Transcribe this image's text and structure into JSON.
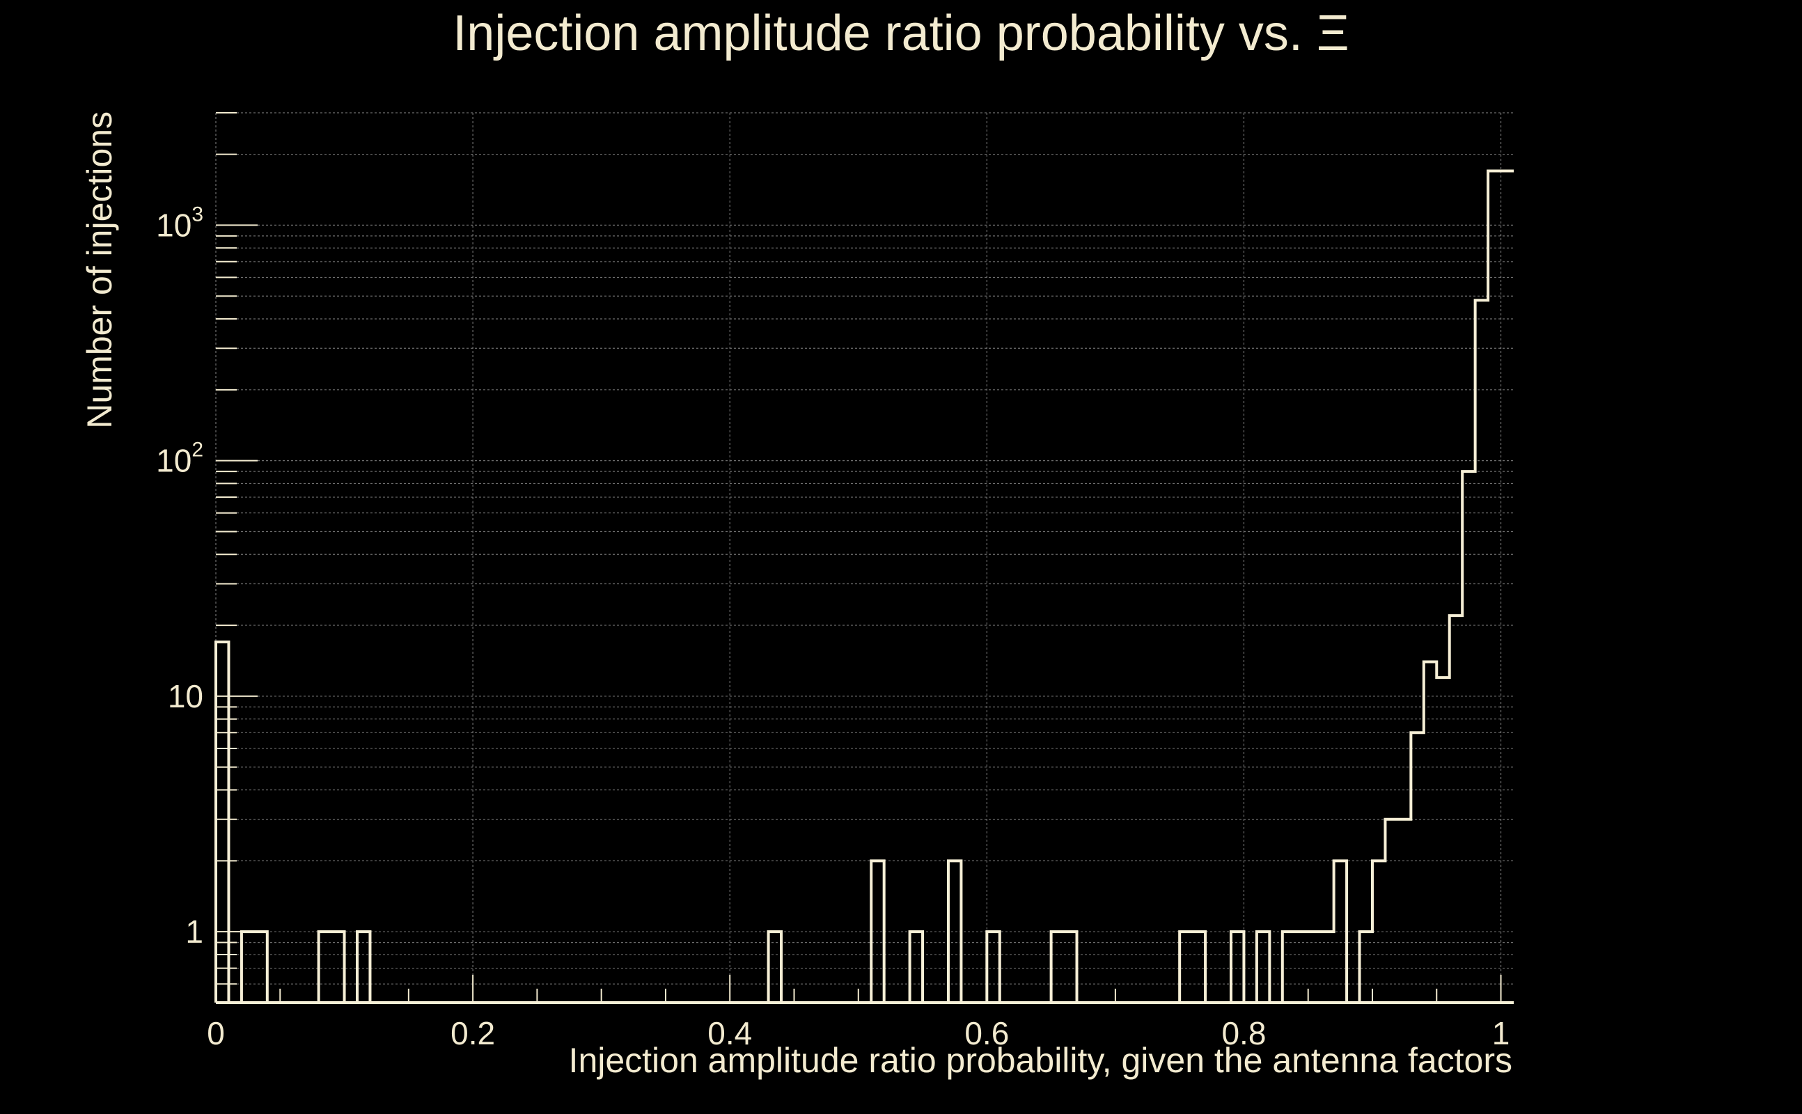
{
  "chart_data": {
    "type": "bar",
    "title": "Injection amplitude ratio probability vs.  Ξ",
    "xlabel": "Injection amplitude ratio probability, given the antenna factors",
    "ylabel": "Number of injections",
    "xlim": [
      0,
      1.01
    ],
    "ylim": [
      0.5,
      3000
    ],
    "yscale": "log",
    "grid": true,
    "x_ticks": [
      0,
      0.2,
      0.4,
      0.6,
      0.8,
      1
    ],
    "x_tick_labels": [
      "0",
      "0.2",
      "0.4",
      "0.6",
      "0.8",
      "1"
    ],
    "y_ticks": [
      1,
      10,
      100,
      1000
    ],
    "y_tick_labels": [
      {
        "base": "1",
        "exp": ""
      },
      {
        "base": "10",
        "exp": ""
      },
      {
        "base": "10",
        "exp": "2"
      },
      {
        "base": "10",
        "exp": "3"
      }
    ],
    "bin_width": 0.01,
    "bin_starts": [
      0.0,
      0.02,
      0.03,
      0.08,
      0.09,
      0.11,
      0.43,
      0.51,
      0.54,
      0.57,
      0.6,
      0.65,
      0.66,
      0.75,
      0.76,
      0.79,
      0.81,
      0.83,
      0.84,
      0.85,
      0.86,
      0.87,
      0.89,
      0.9,
      0.91,
      0.92,
      0.93,
      0.94,
      0.95,
      0.96,
      0.97,
      0.98,
      0.99,
      1.0
    ],
    "values": [
      17,
      1,
      1,
      1,
      1,
      1,
      1,
      2,
      1,
      2,
      1,
      1,
      1,
      1,
      1,
      1,
      1,
      1,
      1,
      1,
      1,
      2,
      1,
      2,
      3,
      3,
      7,
      14,
      12,
      22,
      90,
      480,
      1700,
      1700
    ]
  }
}
